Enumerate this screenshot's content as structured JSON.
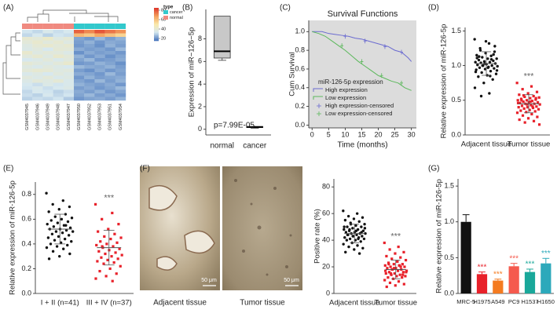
{
  "chart_data": [
    {
      "type": "heatmap",
      "panel": "(A)",
      "columns": [
        "GSM4037945",
        "GSM4037946",
        "GSM4037949",
        "GSM4037948",
        "GSM4037947",
        "GSM4037950",
        "GSM4037952",
        "GSM4037953",
        "GSM4037951",
        "GSM4037954"
      ],
      "column_type": [
        "normal",
        "normal",
        "normal",
        "normal",
        "normal",
        "cancer",
        "cancer",
        "cancer",
        "cancer",
        "cancer"
      ],
      "legend_title": "type",
      "types": [
        {
          "name": "cancer",
          "color": "#33c8cc"
        },
        {
          "name": "normal",
          "color": "#f08a80"
        }
      ],
      "zlim": [
        15,
        85
      ],
      "zticks": [
        20,
        40,
        60,
        80
      ],
      "colorscale": [
        "#4a78bd",
        "#d6e8f0",
        "#fbe9a8",
        "#f3a15e",
        "#de3a2c"
      ],
      "values": [
        [
          32,
          30,
          34,
          31,
          33,
          78,
          72,
          80,
          75,
          70
        ],
        [
          30,
          33,
          29,
          32,
          31,
          62,
          58,
          66,
          60,
          55
        ],
        [
          40,
          38,
          42,
          36,
          39,
          22,
          20,
          25,
          21,
          24
        ],
        [
          38,
          41,
          37,
          40,
          36,
          21,
          24,
          20,
          23,
          22
        ],
        [
          36,
          39,
          41,
          38,
          40,
          20,
          22,
          19,
          24,
          21
        ],
        [
          35,
          37,
          33,
          39,
          38,
          23,
          21,
          22,
          20,
          25
        ],
        [
          41,
          36,
          38,
          37,
          35,
          19,
          23,
          21,
          22,
          20
        ],
        [
          37,
          40,
          36,
          41,
          38,
          24,
          20,
          23,
          19,
          22
        ],
        [
          33,
          35,
          38,
          34,
          37,
          22,
          25,
          20,
          21,
          23
        ],
        [
          39,
          37,
          35,
          38,
          41,
          20,
          21,
          24,
          22,
          19
        ],
        [
          36,
          34,
          37,
          35,
          33,
          25,
          23,
          22,
          24,
          21
        ],
        [
          38,
          40,
          39,
          36,
          37,
          21,
          19,
          23,
          20,
          22
        ],
        [
          34,
          36,
          33,
          37,
          35,
          23,
          22,
          20,
          25,
          21
        ],
        [
          37,
          35,
          38,
          34,
          36,
          20,
          24,
          21,
          22,
          23
        ],
        [
          35,
          38,
          36,
          39,
          34,
          22,
          20,
          25,
          21,
          24
        ],
        [
          33,
          31,
          35,
          32,
          34,
          24,
          22,
          21,
          23,
          20
        ],
        [
          32,
          34,
          31,
          33,
          35,
          21,
          23,
          20,
          22,
          25
        ],
        [
          30,
          33,
          32,
          29,
          31,
          23,
          21,
          24,
          20,
          22
        ],
        [
          31,
          29,
          33,
          30,
          32,
          22,
          25,
          21,
          23,
          20
        ],
        [
          29,
          31,
          30,
          32,
          28,
          20,
          22,
          23,
          21,
          24
        ]
      ]
    },
    {
      "type": "box",
      "panel": "(B)",
      "y_label": "Expression of miR−126−5p",
      "categories": [
        "normal",
        "cancer"
      ],
      "boxes": [
        {
          "min": 6.1,
          "q1": 6.3,
          "median": 6.9,
          "q3": 10.0,
          "max": 10.0
        },
        {
          "min": 0.1,
          "q1": 0.15,
          "median": 0.2,
          "q3": 0.25,
          "max": 0.3
        }
      ],
      "color": "#c8c8c8",
      "annotation": "p=7.99E-05",
      "ylim": [
        -0.5,
        10.6
      ],
      "yticks": [
        0,
        2,
        4,
        6,
        8
      ]
    },
    {
      "type": "survival",
      "panel": "(C)",
      "title": "Survival Functions",
      "x_label": "Time (months)",
      "y_label": "Cum Survival",
      "legend_title": "miR-126-5p expression",
      "background": "#dcdcdc",
      "series": [
        {
          "name": "High expression",
          "color": "#6b6bd0",
          "x": [
            0,
            3,
            5,
            7,
            9,
            11,
            13,
            15,
            17,
            19,
            21,
            23,
            25,
            27,
            29,
            30
          ],
          "values": [
            1,
            1,
            0.98,
            0.97,
            0.96,
            0.95,
            0.93,
            0.92,
            0.9,
            0.88,
            0.86,
            0.84,
            0.8,
            0.78,
            0.72,
            0.68
          ]
        },
        {
          "name": "Low expression",
          "color": "#5cb85c",
          "x": [
            0,
            2,
            4,
            6,
            8,
            10,
            12,
            14,
            16,
            18,
            20,
            22,
            24,
            26,
            28,
            30
          ],
          "values": [
            1,
            0.98,
            0.95,
            0.9,
            0.85,
            0.8,
            0.74,
            0.68,
            0.63,
            0.58,
            0.53,
            0.5,
            0.47,
            0.45,
            0.4,
            0.37
          ]
        },
        {
          "name": "High expression-censored",
          "color": "#6b6bd0",
          "marker": "cross",
          "x": [
            10,
            16,
            22,
            27
          ],
          "values": [
            0.95,
            0.9,
            0.84,
            0.78
          ]
        },
        {
          "name": "Low expression-censored",
          "color": "#5cb85c",
          "marker": "cross",
          "x": [
            9,
            15,
            21,
            27
          ],
          "values": [
            0.85,
            0.68,
            0.53,
            0.45
          ]
        }
      ],
      "xlim": [
        -1,
        31.5
      ],
      "xticks": [
        0,
        5,
        10,
        15,
        20,
        25,
        30
      ],
      "ylim": [
        -0.03,
        1.12
      ],
      "yticks": [
        {
          "value": 0,
          "label": "0.0"
        },
        0.2,
        0.4,
        0.6,
        0.8,
        {
          "value": 1,
          "label": "1.0"
        }
      ]
    },
    {
      "type": "dot",
      "panel": "(D)",
      "y_label": "Relative expression of miR-126-5p",
      "annotation": "***",
      "series": [
        {
          "name": "Adjacent tissue",
          "color": "#111111",
          "marker": "circle",
          "mean": 1.03,
          "sd": 0.17,
          "values": [
            1.38,
            1.32,
            1.25,
            1.2,
            1.18,
            1.15,
            1.14,
            1.12,
            1.1,
            1.1,
            1.08,
            1.07,
            1.06,
            1.05,
            1.05,
            1.04,
            1.03,
            1.02,
            1.01,
            1.0,
            1.0,
            0.99,
            0.98,
            0.97,
            0.96,
            0.95,
            0.94,
            0.92,
            0.9,
            0.88,
            0.86,
            0.84,
            0.8,
            0.75,
            0.68,
            0.6,
            1.22,
            1.28,
            1.35,
            1.11,
            1.09,
            1.0,
            0.93,
            0.97,
            1.13,
            1.16,
            1.03,
            0.91,
            0.85,
            0.56
          ]
        },
        {
          "name": "Tumor tissue",
          "color": "#e8212a",
          "marker": "square",
          "mean": 0.45,
          "sd": 0.13,
          "values": [
            0.75,
            0.7,
            0.66,
            0.62,
            0.6,
            0.58,
            0.56,
            0.55,
            0.54,
            0.53,
            0.52,
            0.51,
            0.5,
            0.5,
            0.49,
            0.48,
            0.47,
            0.47,
            0.46,
            0.45,
            0.45,
            0.44,
            0.43,
            0.42,
            0.41,
            0.4,
            0.4,
            0.39,
            0.38,
            0.37,
            0.36,
            0.35,
            0.34,
            0.33,
            0.32,
            0.3,
            0.28,
            0.26,
            0.24,
            0.22,
            0.2,
            0.18,
            0.15,
            0.48,
            0.5,
            0.53,
            0.44,
            0.46,
            0.41,
            0.57
          ]
        }
      ],
      "ylim": [
        0,
        1.55
      ],
      "yticks": [
        {
          "value": 0,
          "label": "0.0"
        },
        0.5,
        {
          "value": 1,
          "label": "1.0"
        },
        1.5
      ]
    },
    {
      "type": "dot",
      "panel": "(E)",
      "y_label": "Relative expression of miR-126-5p",
      "annotation": "***",
      "series": [
        {
          "name": "I + II (n=41)",
          "color": "#111111",
          "marker": "circle",
          "mean": 0.52,
          "sd": 0.12,
          "values": [
            0.81,
            0.75,
            0.72,
            0.7,
            0.68,
            0.66,
            0.64,
            0.62,
            0.61,
            0.6,
            0.59,
            0.58,
            0.57,
            0.56,
            0.55,
            0.54,
            0.53,
            0.52,
            0.52,
            0.51,
            0.5,
            0.5,
            0.49,
            0.48,
            0.47,
            0.46,
            0.45,
            0.44,
            0.43,
            0.42,
            0.41,
            0.4,
            0.39,
            0.38,
            0.37,
            0.36,
            0.34,
            0.32,
            0.3,
            0.28,
            0.55
          ]
        },
        {
          "name": "III + IV (n=37)",
          "color": "#e8212a",
          "marker": "square",
          "mean": 0.37,
          "sd": 0.14,
          "values": [
            0.72,
            0.65,
            0.6,
            0.56,
            0.52,
            0.5,
            0.48,
            0.46,
            0.45,
            0.44,
            0.42,
            0.41,
            0.4,
            0.39,
            0.38,
            0.37,
            0.36,
            0.35,
            0.34,
            0.33,
            0.32,
            0.31,
            0.3,
            0.29,
            0.28,
            0.27,
            0.26,
            0.25,
            0.24,
            0.22,
            0.2,
            0.18,
            0.16,
            0.14,
            0.12,
            0.1,
            0.38
          ]
        }
      ],
      "ylim": [
        0,
        0.9
      ],
      "yticks": [
        {
          "value": 0,
          "label": "0.0"
        },
        0.2,
        0.4,
        0.6,
        0.8
      ]
    },
    {
      "type": "dot",
      "panel": "(F)",
      "y_label": "Positive rate (%)",
      "annotation": "***",
      "images": [
        {
          "caption": "Adjacent tissue",
          "scale_bar": "50 μm"
        },
        {
          "caption": "Tumor tissue",
          "scale_bar": "50 μm"
        }
      ],
      "series": [
        {
          "name": "Adjacent tissue",
          "color": "#111111",
          "marker": "circle",
          "mean": 45,
          "sd": 7,
          "values": [
            62,
            60,
            58,
            57,
            56,
            55,
            54,
            53,
            52,
            51,
            50,
            50,
            49,
            48,
            48,
            47,
            47,
            46,
            46,
            45,
            45,
            45,
            44,
            44,
            43,
            43,
            42,
            42,
            41,
            41,
            40,
            40,
            39,
            38,
            37,
            36,
            35,
            34,
            33,
            31,
            30,
            52,
            49,
            47,
            44,
            46,
            43,
            50,
            41,
            48
          ]
        },
        {
          "name": "Tumor tissue",
          "color": "#e8212a",
          "marker": "square",
          "mean": 18,
          "sd": 7,
          "values": [
            38,
            35,
            33,
            31,
            30,
            28,
            27,
            26,
            25,
            24,
            23,
            22,
            22,
            21,
            21,
            20,
            20,
            19,
            19,
            18,
            18,
            17,
            17,
            16,
            16,
            15,
            15,
            14,
            14,
            13,
            13,
            12,
            12,
            11,
            10,
            9,
            8,
            7,
            6,
            5,
            20,
            18,
            16,
            24,
            22,
            14,
            19,
            17,
            21,
            15
          ]
        }
      ],
      "ylim": [
        0,
        86
      ],
      "yticks": [
        0,
        20,
        40,
        60,
        80
      ]
    },
    {
      "type": "bar",
      "panel": "(G)",
      "y_label": "Relative expression of miR-126-5p",
      "categories": [
        "MRC-5",
        "H1975",
        "A549",
        "PC9",
        "H1537",
        "H1650"
      ],
      "values": [
        1.0,
        0.27,
        0.18,
        0.38,
        0.3,
        0.42
      ],
      "errors": [
        0.1,
        0.03,
        0.02,
        0.04,
        0.04,
        0.07
      ],
      "colors": [
        "#111111",
        "#e8212a",
        "#f47b20",
        "#f55a4e",
        "#1aa89a",
        "#2ca9bb"
      ],
      "annotations": [
        null,
        "***",
        "***",
        "***",
        "***",
        "***"
      ],
      "ylim": [
        0,
        1.6
      ],
      "yticks": [
        {
          "value": 0,
          "label": "0.0"
        },
        0.5,
        {
          "value": 1,
          "label": "1.0"
        },
        1.5
      ]
    }
  ]
}
